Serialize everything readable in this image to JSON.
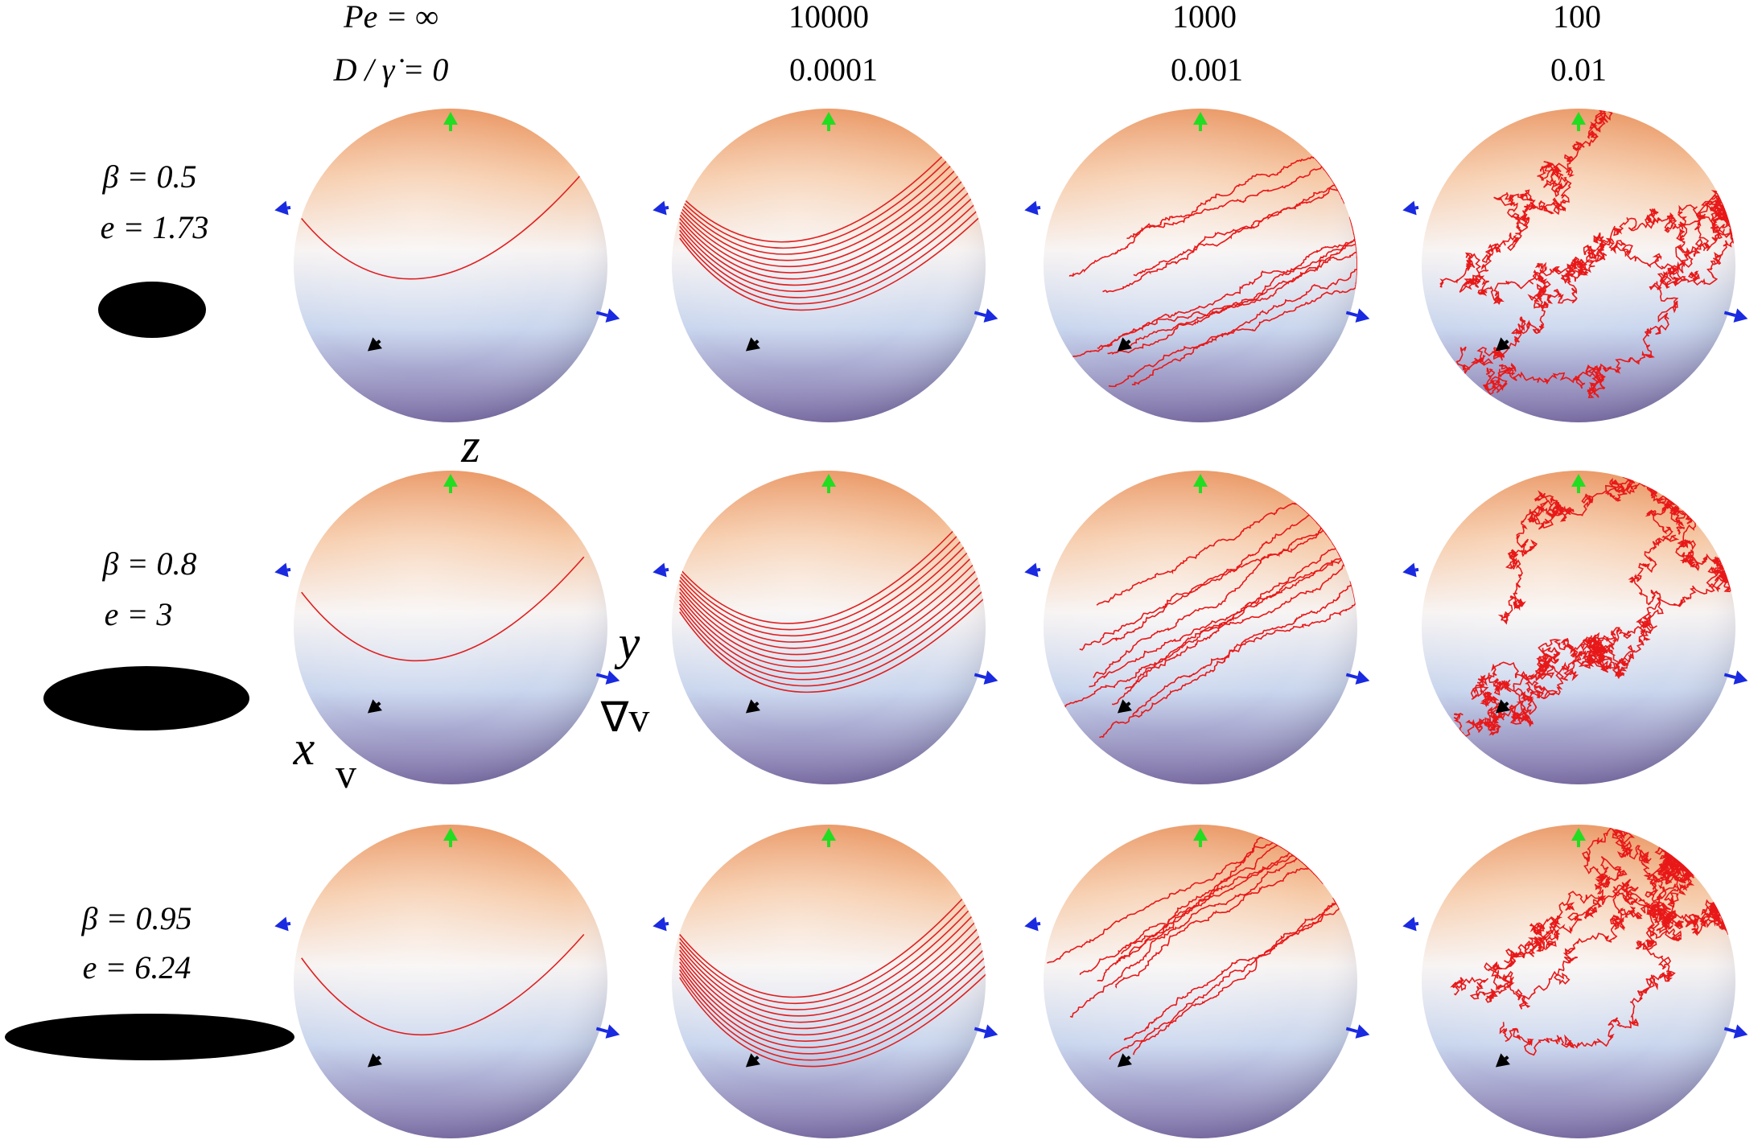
{
  "columns": [
    {
      "pe": "Pe = ∞",
      "d": "D / γ̇ = 0"
    },
    {
      "pe": "10000",
      "d": "0.0001"
    },
    {
      "pe": "1000",
      "d": "0.001"
    },
    {
      "pe": "100",
      "d": "0.01"
    }
  ],
  "rows": [
    {
      "beta": "β = 0.5",
      "e": "e = 1.73"
    },
    {
      "beta": "β = 0.8",
      "e": "e = 3"
    },
    {
      "beta": "β = 0.95",
      "e": "e = 6.24"
    }
  ],
  "axes": {
    "z": "z",
    "y": "y",
    "grad": "∇v",
    "x": "x",
    "v": "v"
  }
}
